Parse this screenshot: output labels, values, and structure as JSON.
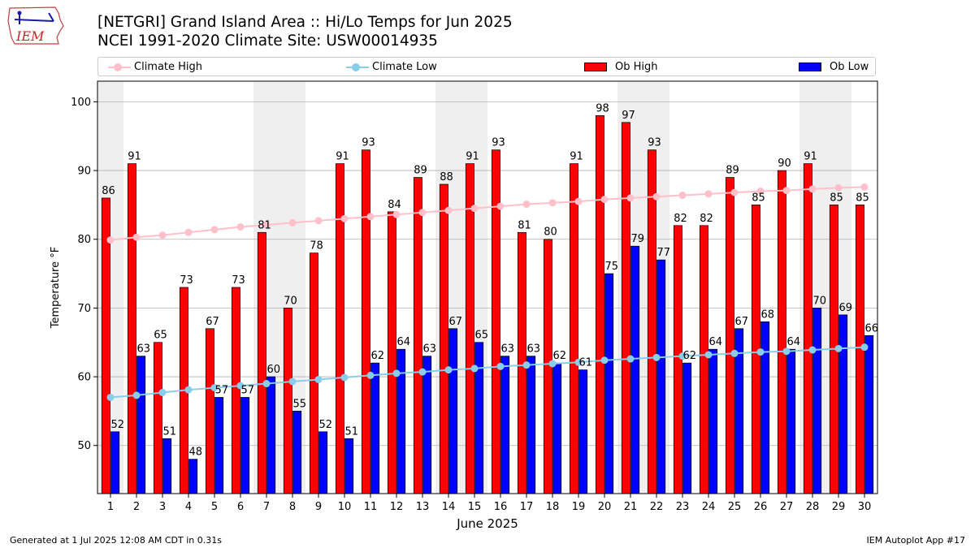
{
  "header": {
    "logo_text": "IEM",
    "title_line1": "[NETGRI] Grand Island Area :: Hi/Lo Temps for Jun 2025",
    "title_line2": "NCEI 1991-2020 Climate Site: USW00014935"
  },
  "legend": {
    "placement": "top, horizontal",
    "items": [
      {
        "label": "Climate High",
        "kind": "line",
        "color": "#ffc0cb"
      },
      {
        "label": "Climate Low",
        "kind": "line",
        "color": "#87ceeb"
      },
      {
        "label": "Ob High",
        "kind": "bar",
        "color": "#ff0000"
      },
      {
        "label": "Ob Low",
        "kind": "bar",
        "color": "#0000ff"
      }
    ]
  },
  "chart_data": {
    "type": "bar",
    "title": "[NETGRI] Grand Island Area :: Hi/Lo Temps for Jun 2025",
    "subtitle": "NCEI 1991-2020 Climate Site: USW00014935",
    "xlabel": "June 2025",
    "ylabel": "Temperature °F",
    "ylim": [
      43,
      103
    ],
    "yticks": [
      50,
      60,
      70,
      80,
      90,
      100
    ],
    "grid": "horizontal",
    "legend_placement": "top",
    "weekend_shading_days": [
      1,
      7,
      8,
      14,
      15,
      21,
      22,
      28,
      29
    ],
    "categories": [
      "1",
      "2",
      "3",
      "4",
      "5",
      "6",
      "7",
      "8",
      "9",
      "10",
      "11",
      "12",
      "13",
      "14",
      "15",
      "16",
      "17",
      "18",
      "19",
      "20",
      "21",
      "22",
      "23",
      "24",
      "25",
      "26",
      "27",
      "28",
      "29",
      "30"
    ],
    "series": [
      {
        "name": "Ob High",
        "type": "bar",
        "color": "#ff0000",
        "values": [
          86,
          91,
          65,
          73,
          67,
          73,
          81,
          70,
          78,
          91,
          93,
          84,
          89,
          88,
          91,
          93,
          81,
          80,
          91,
          98,
          97,
          93,
          82,
          82,
          89,
          85,
          90,
          91,
          85,
          85
        ]
      },
      {
        "name": "Ob Low",
        "type": "bar",
        "color": "#0000ff",
        "values": [
          52,
          63,
          51,
          48,
          57,
          57,
          60,
          55,
          52,
          51,
          62,
          64,
          63,
          67,
          65,
          63,
          63,
          62,
          61,
          75,
          79,
          77,
          62,
          64,
          67,
          68,
          64,
          70,
          69,
          66
        ]
      },
      {
        "name": "Climate High",
        "type": "line",
        "color": "#ffc0cb",
        "values": [
          79.9,
          80.3,
          80.6,
          81.0,
          81.4,
          81.8,
          82.1,
          82.4,
          82.7,
          83.0,
          83.3,
          83.6,
          83.9,
          84.2,
          84.5,
          84.8,
          85.1,
          85.3,
          85.5,
          85.8,
          86.0,
          86.2,
          86.4,
          86.6,
          86.8,
          87.0,
          87.1,
          87.3,
          87.5,
          87.6
        ]
      },
      {
        "name": "Climate Low",
        "type": "line",
        "color": "#87ceeb",
        "values": [
          57.0,
          57.3,
          57.7,
          58.1,
          58.4,
          58.7,
          59.0,
          59.3,
          59.6,
          59.9,
          60.2,
          60.5,
          60.7,
          61.0,
          61.2,
          61.5,
          61.7,
          61.9,
          62.1,
          62.4,
          62.6,
          62.8,
          63.0,
          63.2,
          63.4,
          63.6,
          63.7,
          63.9,
          64.1,
          64.3
        ]
      }
    ]
  },
  "footer": {
    "generated": "Generated at 1 Jul 2025 12:08 AM CDT in 0.31s",
    "app": "IEM Autoplot App #17"
  }
}
